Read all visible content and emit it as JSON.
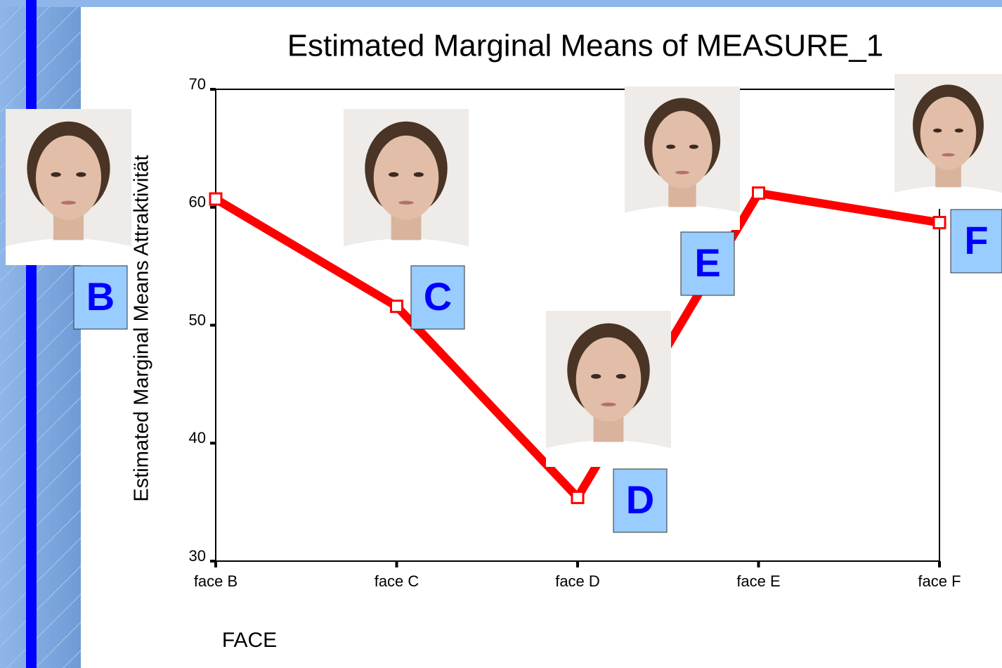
{
  "chart_data": {
    "type": "line",
    "title": "Estimated Marginal Means of MEASURE_1",
    "x_label": "FACE",
    "y_label": "Estimated Marginal Means Attraktivität",
    "categories": [
      "face B",
      "face C",
      "face D",
      "face E",
      "face F"
    ],
    "values": [
      60.7,
      51.6,
      35.4,
      61.2,
      58.7
    ],
    "color": "#ff0000",
    "ylim": [
      30,
      70
    ],
    "yticks": [
      30,
      40,
      50,
      60,
      70
    ],
    "photo_labels": [
      "B",
      "C",
      "D",
      "E",
      "F"
    ]
  }
}
